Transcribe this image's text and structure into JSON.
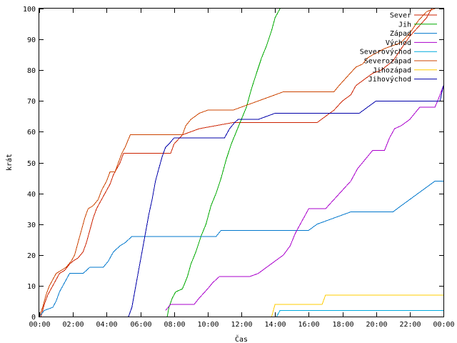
{
  "chart_data": {
    "type": "line",
    "title": "",
    "xlabel": "Čas",
    "ylabel": "krát",
    "xlim": [
      0,
      24
    ],
    "ylim": [
      0,
      100
    ],
    "x_ticks": [
      {
        "value": 0,
        "label": "00:00"
      },
      {
        "value": 2,
        "label": "02:00"
      },
      {
        "value": 4,
        "label": "04:00"
      },
      {
        "value": 6,
        "label": "06:00"
      },
      {
        "value": 8,
        "label": "08:00"
      },
      {
        "value": 10,
        "label": "10:00"
      },
      {
        "value": 12,
        "label": "12:00"
      },
      {
        "value": 14,
        "label": "14:00"
      },
      {
        "value": 16,
        "label": "16:00"
      },
      {
        "value": 18,
        "label": "18:00"
      },
      {
        "value": 20,
        "label": "20:00"
      },
      {
        "value": 22,
        "label": "22:00"
      },
      {
        "value": 24,
        "label": "00:00"
      }
    ],
    "y_ticks": [
      0,
      10,
      20,
      30,
      40,
      50,
      60,
      70,
      80,
      90,
      100
    ],
    "grid": false,
    "legend_position": "top-right",
    "series": [
      {
        "name": "Sever",
        "color": "#cc2200",
        "points": [
          [
            0.1,
            0
          ],
          [
            0.2,
            2
          ],
          [
            0.3,
            4
          ],
          [
            0.5,
            7
          ],
          [
            0.8,
            10
          ],
          [
            1.0,
            12
          ],
          [
            1.2,
            14
          ],
          [
            1.5,
            15
          ],
          [
            1.8,
            17
          ],
          [
            2.0,
            18
          ],
          [
            2.3,
            19
          ],
          [
            2.6,
            21
          ],
          [
            2.8,
            24
          ],
          [
            3.0,
            28
          ],
          [
            3.2,
            32
          ],
          [
            3.4,
            35
          ],
          [
            3.6,
            37
          ],
          [
            3.9,
            40
          ],
          [
            4.2,
            43
          ],
          [
            4.4,
            46
          ],
          [
            4.6,
            48
          ],
          [
            4.8,
            50
          ],
          [
            5.0,
            53
          ],
          [
            7.8,
            53
          ],
          [
            8.0,
            56
          ],
          [
            8.5,
            59
          ],
          [
            9.5,
            61
          ],
          [
            10.5,
            62
          ],
          [
            11.5,
            63
          ],
          [
            16.5,
            63
          ],
          [
            17.0,
            65
          ],
          [
            17.5,
            67
          ],
          [
            18.0,
            70
          ],
          [
            18.5,
            72
          ],
          [
            18.8,
            75
          ],
          [
            19.3,
            77
          ],
          [
            19.8,
            79
          ],
          [
            20.3,
            80
          ],
          [
            21.0,
            83
          ],
          [
            21.5,
            87
          ],
          [
            22.0,
            91
          ],
          [
            22.5,
            94
          ],
          [
            23.0,
            97
          ],
          [
            23.3,
            100
          ]
        ]
      },
      {
        "name": "Jih",
        "color": "#00aa00",
        "points": [
          [
            7.6,
            0
          ],
          [
            7.7,
            3
          ],
          [
            7.9,
            6
          ],
          [
            8.1,
            8
          ],
          [
            8.5,
            9
          ],
          [
            8.8,
            13
          ],
          [
            9.0,
            17
          ],
          [
            9.3,
            21
          ],
          [
            9.6,
            26
          ],
          [
            9.9,
            30
          ],
          [
            10.2,
            36
          ],
          [
            10.5,
            40
          ],
          [
            10.8,
            45
          ],
          [
            11.1,
            51
          ],
          [
            11.4,
            56
          ],
          [
            11.7,
            60
          ],
          [
            12.0,
            64
          ],
          [
            12.3,
            68
          ],
          [
            12.6,
            74
          ],
          [
            12.9,
            79
          ],
          [
            13.2,
            84
          ],
          [
            13.5,
            88
          ],
          [
            13.8,
            93
          ],
          [
            14.0,
            97
          ],
          [
            14.3,
            100
          ]
        ]
      },
      {
        "name": "Západ",
        "color": "#0077cc",
        "points": [
          [
            0,
            0
          ],
          [
            0.3,
            2
          ],
          [
            0.8,
            3
          ],
          [
            1.0,
            5
          ],
          [
            1.2,
            8
          ],
          [
            1.5,
            11
          ],
          [
            1.8,
            14
          ],
          [
            2.6,
            14
          ],
          [
            3.0,
            16
          ],
          [
            3.8,
            16
          ],
          [
            4.1,
            18
          ],
          [
            4.4,
            21
          ],
          [
            4.8,
            23
          ],
          [
            5.1,
            24
          ],
          [
            5.5,
            26
          ],
          [
            10.5,
            26
          ],
          [
            10.8,
            28
          ],
          [
            16.0,
            28
          ],
          [
            16.5,
            30
          ],
          [
            17.5,
            32
          ],
          [
            18.0,
            33
          ],
          [
            18.5,
            34
          ],
          [
            21.0,
            34
          ],
          [
            21.5,
            36
          ],
          [
            22.0,
            38
          ],
          [
            22.5,
            40
          ],
          [
            23.0,
            42
          ],
          [
            23.5,
            44
          ],
          [
            24,
            44
          ]
        ]
      },
      {
        "name": "Východ",
        "color": "#aa00cc",
        "points": [
          [
            7.5,
            2
          ],
          [
            7.8,
            4
          ],
          [
            9.2,
            4
          ],
          [
            9.5,
            6
          ],
          [
            10.0,
            9
          ],
          [
            10.3,
            11
          ],
          [
            10.7,
            13
          ],
          [
            12.5,
            13
          ],
          [
            13.0,
            14
          ],
          [
            13.5,
            16
          ],
          [
            14.0,
            18
          ],
          [
            14.5,
            20
          ],
          [
            14.9,
            23
          ],
          [
            15.2,
            27
          ],
          [
            15.5,
            30
          ],
          [
            15.8,
            33
          ],
          [
            16.0,
            35
          ],
          [
            17.0,
            35
          ],
          [
            17.5,
            38
          ],
          [
            18.0,
            41
          ],
          [
            18.5,
            44
          ],
          [
            18.9,
            48
          ],
          [
            19.2,
            50
          ],
          [
            19.5,
            52
          ],
          [
            19.8,
            54
          ],
          [
            20.5,
            54
          ],
          [
            20.8,
            58
          ],
          [
            21.1,
            61
          ],
          [
            21.5,
            62
          ],
          [
            22.0,
            64
          ],
          [
            22.3,
            66
          ],
          [
            22.6,
            68
          ],
          [
            23.5,
            68
          ],
          [
            23.8,
            72
          ],
          [
            24,
            75
          ]
        ]
      },
      {
        "name": "Severovýchod",
        "color": "#00aadd",
        "points": [
          [
            14.1,
            0
          ],
          [
            14.3,
            2
          ],
          [
            24,
            2
          ]
        ]
      },
      {
        "name": "Severozápad",
        "color": "#cc4400",
        "points": [
          [
            0,
            0
          ],
          [
            0.2,
            3
          ],
          [
            0.4,
            7
          ],
          [
            0.6,
            10
          ],
          [
            0.8,
            12
          ],
          [
            1.0,
            14
          ],
          [
            1.3,
            15
          ],
          [
            1.6,
            16
          ],
          [
            1.9,
            18
          ],
          [
            2.1,
            20
          ],
          [
            2.3,
            24
          ],
          [
            2.5,
            28
          ],
          [
            2.7,
            32
          ],
          [
            2.9,
            35
          ],
          [
            3.2,
            36
          ],
          [
            3.5,
            38
          ],
          [
            3.7,
            41
          ],
          [
            4.0,
            44
          ],
          [
            4.2,
            47
          ],
          [
            4.5,
            47
          ],
          [
            4.7,
            50
          ],
          [
            4.9,
            53
          ],
          [
            5.1,
            55
          ],
          [
            5.4,
            59
          ],
          [
            8.5,
            59
          ],
          [
            8.7,
            62
          ],
          [
            9.0,
            64
          ],
          [
            9.5,
            66
          ],
          [
            10.0,
            67
          ],
          [
            11.5,
            67
          ],
          [
            12.0,
            68
          ],
          [
            12.5,
            69
          ],
          [
            13.0,
            70
          ],
          [
            13.5,
            71
          ],
          [
            14.0,
            72
          ],
          [
            14.5,
            73
          ],
          [
            17.5,
            73
          ],
          [
            17.8,
            75
          ],
          [
            18.3,
            78
          ],
          [
            18.8,
            81
          ],
          [
            19.2,
            82
          ],
          [
            19.5,
            84
          ],
          [
            19.8,
            85
          ],
          [
            20.5,
            87
          ],
          [
            21.0,
            88
          ],
          [
            21.5,
            89
          ],
          [
            22.0,
            92
          ],
          [
            22.5,
            96
          ],
          [
            23.0,
            99
          ],
          [
            23.5,
            100
          ]
        ]
      },
      {
        "name": "Jihozápad",
        "color": "#ffcc00",
        "points": [
          [
            13.8,
            0
          ],
          [
            14.0,
            4
          ],
          [
            16.8,
            4
          ],
          [
            17.0,
            7
          ],
          [
            24,
            7
          ]
        ]
      },
      {
        "name": "Jihovýchod",
        "color": "#0000aa",
        "points": [
          [
            5.3,
            0
          ],
          [
            5.5,
            3
          ],
          [
            5.7,
            9
          ],
          [
            5.9,
            15
          ],
          [
            6.1,
            21
          ],
          [
            6.3,
            27
          ],
          [
            6.5,
            33
          ],
          [
            6.7,
            38
          ],
          [
            6.9,
            44
          ],
          [
            7.1,
            48
          ],
          [
            7.3,
            52
          ],
          [
            7.5,
            55
          ],
          [
            7.7,
            56
          ],
          [
            8.0,
            58
          ],
          [
            11.0,
            58
          ],
          [
            11.3,
            61
          ],
          [
            11.6,
            63
          ],
          [
            11.8,
            64
          ],
          [
            13.0,
            64
          ],
          [
            13.5,
            65
          ],
          [
            14.0,
            66
          ],
          [
            19.0,
            66
          ],
          [
            19.5,
            68
          ],
          [
            20.0,
            70
          ],
          [
            23.8,
            70
          ],
          [
            24,
            75
          ]
        ]
      }
    ]
  }
}
